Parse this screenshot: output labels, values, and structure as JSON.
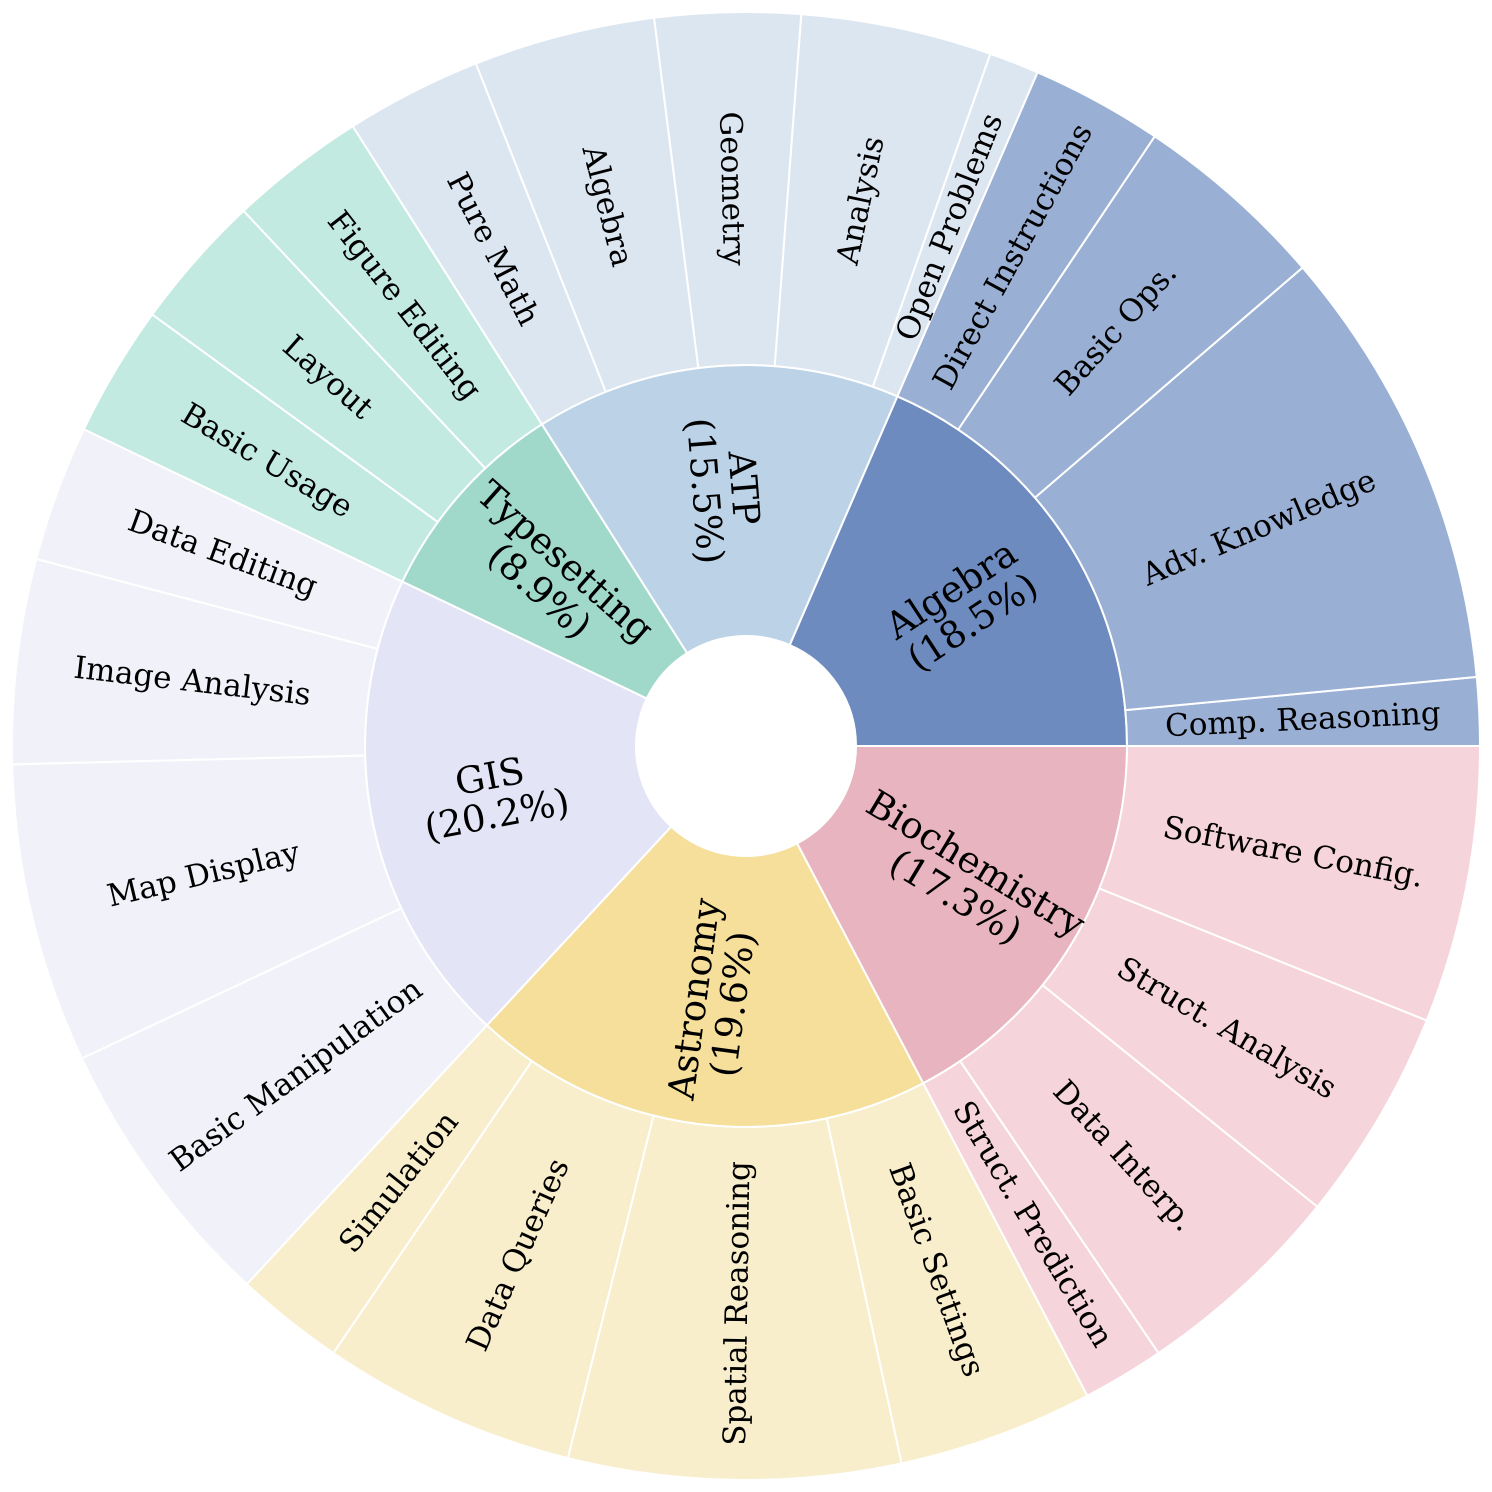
{
  "chart_data": {
    "type": "sunburst",
    "categories": [
      {
        "name": "Algebra",
        "pct_label": "(18.5%)",
        "value": 18.5,
        "color": "#6d8bbf",
        "child_color": "#9aafd4",
        "children": [
          {
            "name": "Comp. Reasoning",
            "value": 1.5
          },
          {
            "name": "Adv. Knowledge",
            "value": 9.8
          },
          {
            "name": "Basic Ops.",
            "value": 4.3
          },
          {
            "name": "Direct Instructions",
            "value": 2.9
          }
        ]
      },
      {
        "name": "ATP",
        "pct_label": "(15.5%)",
        "value": 15.5,
        "color": "#bcd3e7",
        "child_color": "#dce6f1",
        "children": [
          {
            "name": "Open Problems",
            "value": 1.1
          },
          {
            "name": "Analysis",
            "value": 4.2
          },
          {
            "name": "Geometry",
            "value": 3.2
          },
          {
            "name": "Algebra",
            "value": 4.0
          },
          {
            "name": "Pure Math",
            "value": 3.0
          }
        ]
      },
      {
        "name": "Typesetting",
        "pct_label": "(8.9%)",
        "value": 8.9,
        "color": "#a0d9c9",
        "child_color": "#c2eae1",
        "children": [
          {
            "name": "Figure Editing",
            "value": 3.0
          },
          {
            "name": "Layout",
            "value": 3.0
          },
          {
            "name": "Basic Usage",
            "value": 2.9
          }
        ]
      },
      {
        "name": "GIS",
        "pct_label": "(20.2%)",
        "value": 20.2,
        "color": "#e4e4f7",
        "child_color": "#f1f2f9",
        "children": [
          {
            "name": "Data Editing",
            "value": 3.0
          },
          {
            "name": "Image Analysis",
            "value": 4.5
          },
          {
            "name": "Map Display",
            "value": 6.6
          },
          {
            "name": "Basic Manipulation",
            "value": 6.1
          }
        ]
      },
      {
        "name": "Astronomy",
        "pct_label": "(19.6%)",
        "value": 19.6,
        "color": "#f5df9b",
        "child_color": "#f8eecb",
        "children": [
          {
            "name": "Simulation",
            "value": 2.4
          },
          {
            "name": "Data Queries",
            "value": 5.6
          },
          {
            "name": "Spatial Reasoning",
            "value": 7.3
          },
          {
            "name": "Basic Settings",
            "value": 4.3
          }
        ]
      },
      {
        "name": "Biochemistry",
        "pct_label": "(17.3%)",
        "value": 17.3,
        "color": "#e8b4c0",
        "child_color": "#f6d4db",
        "children": [
          {
            "name": "Struct. Prediction",
            "value": 1.8
          },
          {
            "name": "Data Interp.",
            "value": 4.7
          },
          {
            "name": "Struct. Analysis",
            "value": 4.7
          },
          {
            "name": "Software Config.",
            "value": 6.1
          }
        ]
      }
    ]
  }
}
